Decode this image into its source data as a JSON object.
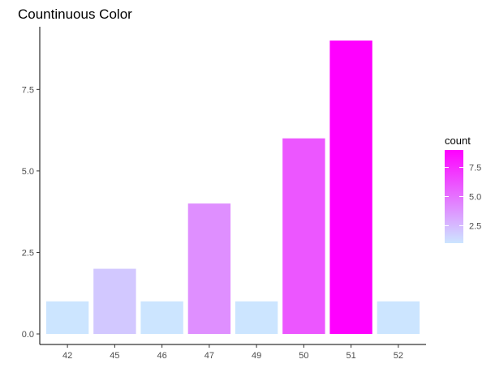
{
  "chart_data": {
    "type": "bar",
    "title": "Countinuous Color",
    "xlabel": "",
    "ylabel": "",
    "categories": [
      "42",
      "45",
      "46",
      "47",
      "49",
      "50",
      "51",
      "52"
    ],
    "values": [
      1,
      2,
      1,
      4,
      1,
      6,
      9,
      1
    ],
    "ylim": [
      0,
      9
    ],
    "yticks": [
      0.0,
      2.5,
      5.0,
      7.5
    ],
    "ytick_labels": [
      "0.0",
      "2.5",
      "5.0",
      "7.5"
    ],
    "grid": false,
    "fill_scale": {
      "low_color": "#cce5ff",
      "high_color": "#ff00ff",
      "min": 1,
      "max": 9
    },
    "legend": {
      "title": "count",
      "position": "right",
      "ticks": [
        2.5,
        5.0,
        7.5
      ],
      "tick_labels": [
        "2.5",
        "5.0",
        "7.5"
      ]
    }
  }
}
